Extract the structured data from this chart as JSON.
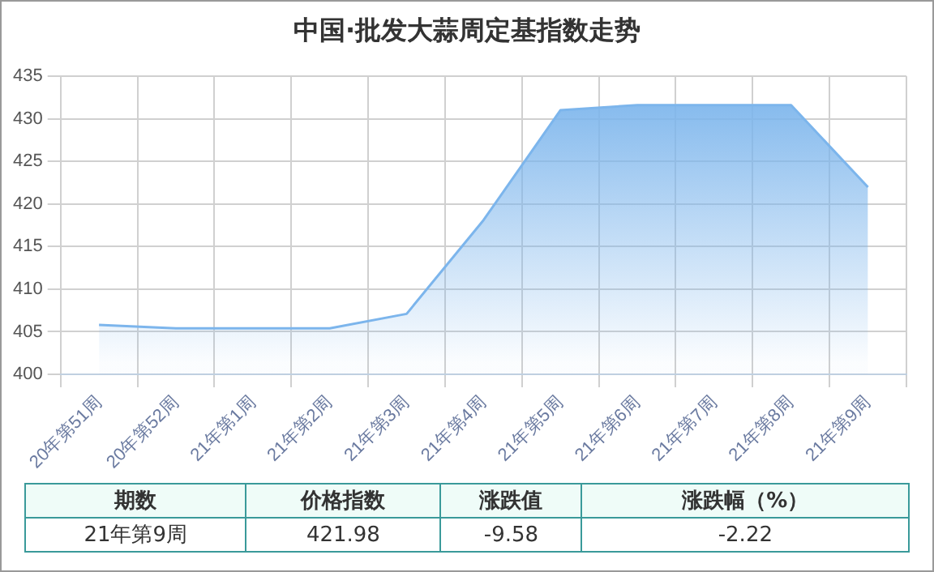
{
  "chart_data": {
    "type": "area",
    "title": "中国·批发大蒜周定基指数走势",
    "categories": [
      "20年第51周",
      "20年第52周",
      "21年第1周",
      "21年第2周",
      "21年第3周",
      "21年第4周",
      "21年第5周",
      "21年第6周",
      "21年第7周",
      "21年第8周",
      "21年第9周"
    ],
    "values": [
      405.8,
      405.4,
      405.4,
      405.4,
      407.1,
      418.1,
      431.0,
      431.6,
      431.6,
      431.6,
      421.98
    ],
    "color": "#7cb5ec",
    "ylim": [
      400,
      435
    ],
    "yticks": [
      400,
      405,
      410,
      415,
      420,
      425,
      430,
      435
    ],
    "grid": true,
    "legend": false,
    "annotations": [
      "期数",
      "价格指数",
      "涨跌值",
      "涨跌幅（%）",
      "21年第9周",
      "421.98",
      "-9.58",
      "-2.22"
    ]
  }
}
